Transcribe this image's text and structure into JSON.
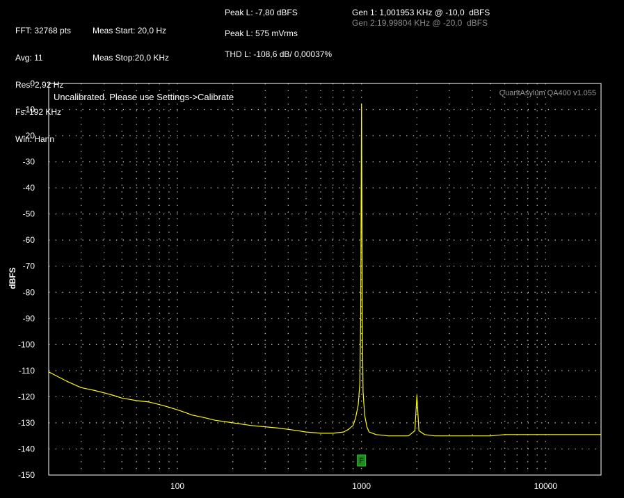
{
  "header": {
    "col1": [
      "FFT: 32768 pts",
      "Avg: 11",
      "Res: 2,92 Hz",
      "Fs: 192 KHz",
      "Win: Hann"
    ],
    "col2": [
      "Meas Start: 20,0 Hz",
      "Meas Stop:20,0 KHz"
    ],
    "col3": [
      "Peak L: -7,80 dBFS",
      "Peak L: 575 mVrms",
      "THD L: -108,6 dB/ 0,00037%"
    ],
    "gen1": "Gen 1: 1,001953 KHz @ -10,0  dBFS",
    "gen2": "Gen 2:19,99804 KHz @ -20,0  dBFS"
  },
  "chart_data": {
    "type": "line",
    "xscale": "log",
    "xlim": [
      20,
      20000
    ],
    "ylim": [
      -150,
      0
    ],
    "ylabel": "dBFS",
    "yticks": [
      0,
      -10,
      -20,
      -30,
      -40,
      -50,
      -60,
      -70,
      -80,
      -90,
      -100,
      -110,
      -120,
      -130,
      -140,
      -150
    ],
    "xticks": [
      100,
      1000,
      10000
    ],
    "xtick_labels": [
      "100",
      "1000",
      "10000"
    ],
    "grid": true,
    "annotation": "Uncalibrated. Please use Settings->Calibrate",
    "watermark": "QuantAsylum QA400 v1.055",
    "marker": "F",
    "marker_x": 1000,
    "colors": {
      "trace": "#ffff00",
      "marker": "#1a8c1a",
      "grid": "#c8c8c8",
      "frame": "#ffffff"
    },
    "series": [
      {
        "x": [
          20,
          22,
          25,
          30,
          35,
          40,
          45,
          50,
          55,
          60,
          70,
          80,
          90,
          100,
          110,
          120,
          140,
          160,
          180,
          200,
          250,
          300,
          350,
          400,
          450,
          500,
          600,
          700,
          800,
          850,
          900,
          930,
          960,
          980,
          990,
          1000,
          1010,
          1020,
          1040,
          1070,
          1100,
          1200,
          1400,
          1600,
          1800,
          1950,
          2000,
          2050,
          2200,
          2500,
          3000,
          3500,
          4000,
          5000,
          6000,
          7000,
          8000,
          10000,
          12000,
          14000,
          16000,
          18000,
          20000
        ],
        "values": [
          -110.5,
          -112,
          -114,
          -116.5,
          -117.5,
          -118.5,
          -119.5,
          -120.5,
          -121,
          -121.5,
          -122,
          -123,
          -124,
          -125,
          -126,
          -127,
          -128,
          -129,
          -129.5,
          -130,
          -131,
          -131.5,
          -132,
          -132.5,
          -133,
          -133.5,
          -134,
          -134,
          -133.5,
          -132.5,
          -131,
          -128,
          -123,
          -115,
          -90,
          -7.8,
          -90,
          -118,
          -127,
          -131.5,
          -133.5,
          -134.5,
          -135,
          -135,
          -135,
          -133,
          -119.5,
          -133,
          -134.5,
          -135,
          -135,
          -135,
          -135,
          -135,
          -134.5,
          -134.5,
          -134.5,
          -134.5,
          -134.5,
          -134.5,
          -134.5,
          -134.5,
          -134.5
        ]
      }
    ]
  }
}
